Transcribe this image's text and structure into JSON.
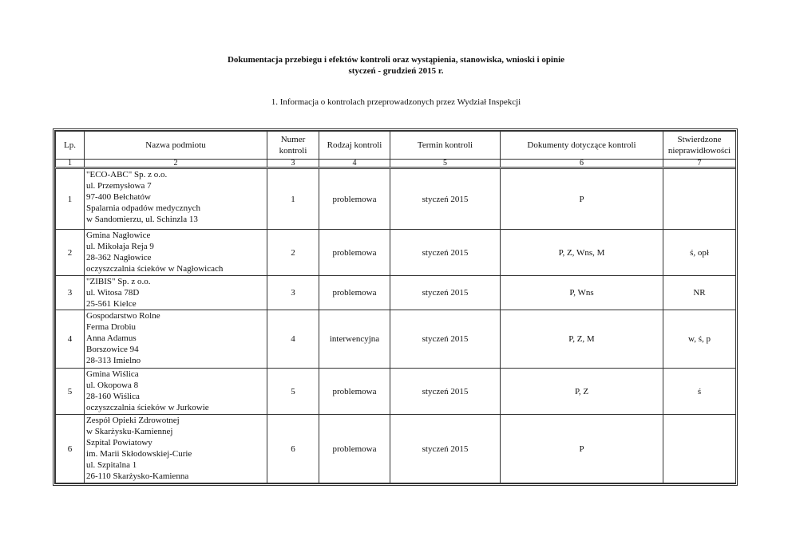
{
  "title_line1": "Dokumentacja przebiegu i efektów kontroli oraz wystąpienia, stanowiska, wnioski i opinie",
  "title_line2": "styczeń - grudzień 2015 r.",
  "section": "1. Informacja o kontrolach przeprowadzonych przez Wydział Inspekcji",
  "headers": [
    "Lp.",
    "Nazwa podmiotu",
    "Numer kontroli",
    "Rodzaj kontroli",
    "Termin kontroli",
    "Dokumenty dotyczące kontroli",
    "Stwierdzone nieprawidłowości"
  ],
  "column_numbers": [
    "1",
    "2",
    "3",
    "4",
    "5",
    "6",
    "7"
  ],
  "rows": [
    {
      "lp": "1",
      "name": [
        "\"ECO-ABC\" Sp. z o.o.",
        "ul. Przemysłowa 7",
        "97-400 Bełchatów",
        "Spalarnia odpadów medycznych",
        "w Sandomierzu, ul. Schinzla 13"
      ],
      "numer": "1",
      "rodzaj": "problemowa",
      "termin": "styczeń 2015",
      "dokumenty": "P",
      "nieprawidlowosci": ""
    },
    {
      "lp": "2",
      "name": [
        "Gmina Nagłowice",
        "ul. Mikołaja Reja 9",
        "28-362 Nagłowice",
        "oczyszczalnia ścieków w Nagłowicach"
      ],
      "numer": "2",
      "rodzaj": "problemowa",
      "termin": "styczeń 2015",
      "dokumenty": "P, Z, Wns, M",
      "nieprawidlowosci": "ś, opł"
    },
    {
      "lp": "3",
      "name": [
        "\"ZIBIS\" Sp. z o.o.",
        "ul. Witosa 78D",
        "25-561 Kielce"
      ],
      "numer": "3",
      "rodzaj": "problemowa",
      "termin": "styczeń 2015",
      "dokumenty": "P, Wns",
      "nieprawidlowosci": "NR"
    },
    {
      "lp": "4",
      "name": [
        "Gospodarstwo Rolne",
        "Ferma Drobiu",
        "Anna Adamus",
        "Borszowice 94",
        "28-313 Imielno"
      ],
      "numer": "4",
      "rodzaj": "interwencyjna",
      "termin": "styczeń 2015",
      "dokumenty": "P, Z, M",
      "nieprawidlowosci": "w, ś, p"
    },
    {
      "lp": "5",
      "name": [
        "Gmina Wiślica",
        "ul. Okopowa 8",
        "28-160 Wiślica",
        "oczyszczalnia ścieków w Jurkowie"
      ],
      "numer": "5",
      "rodzaj": "problemowa",
      "termin": "styczeń 2015",
      "dokumenty": "P, Z",
      "nieprawidlowosci": "ś"
    },
    {
      "lp": "6",
      "name": [
        "Zespół Opieki Zdrowotnej",
        "w Skarżysku-Kamiennej",
        "Szpital Powiatowy",
        "im. Marii Skłodowskiej-Curie",
        "ul. Szpitalna 1",
        "26-110 Skarżysko-Kamienna"
      ],
      "numer": "6",
      "rodzaj": "problemowa",
      "termin": "styczeń 2015",
      "dokumenty": "P",
      "nieprawidlowosci": ""
    }
  ]
}
